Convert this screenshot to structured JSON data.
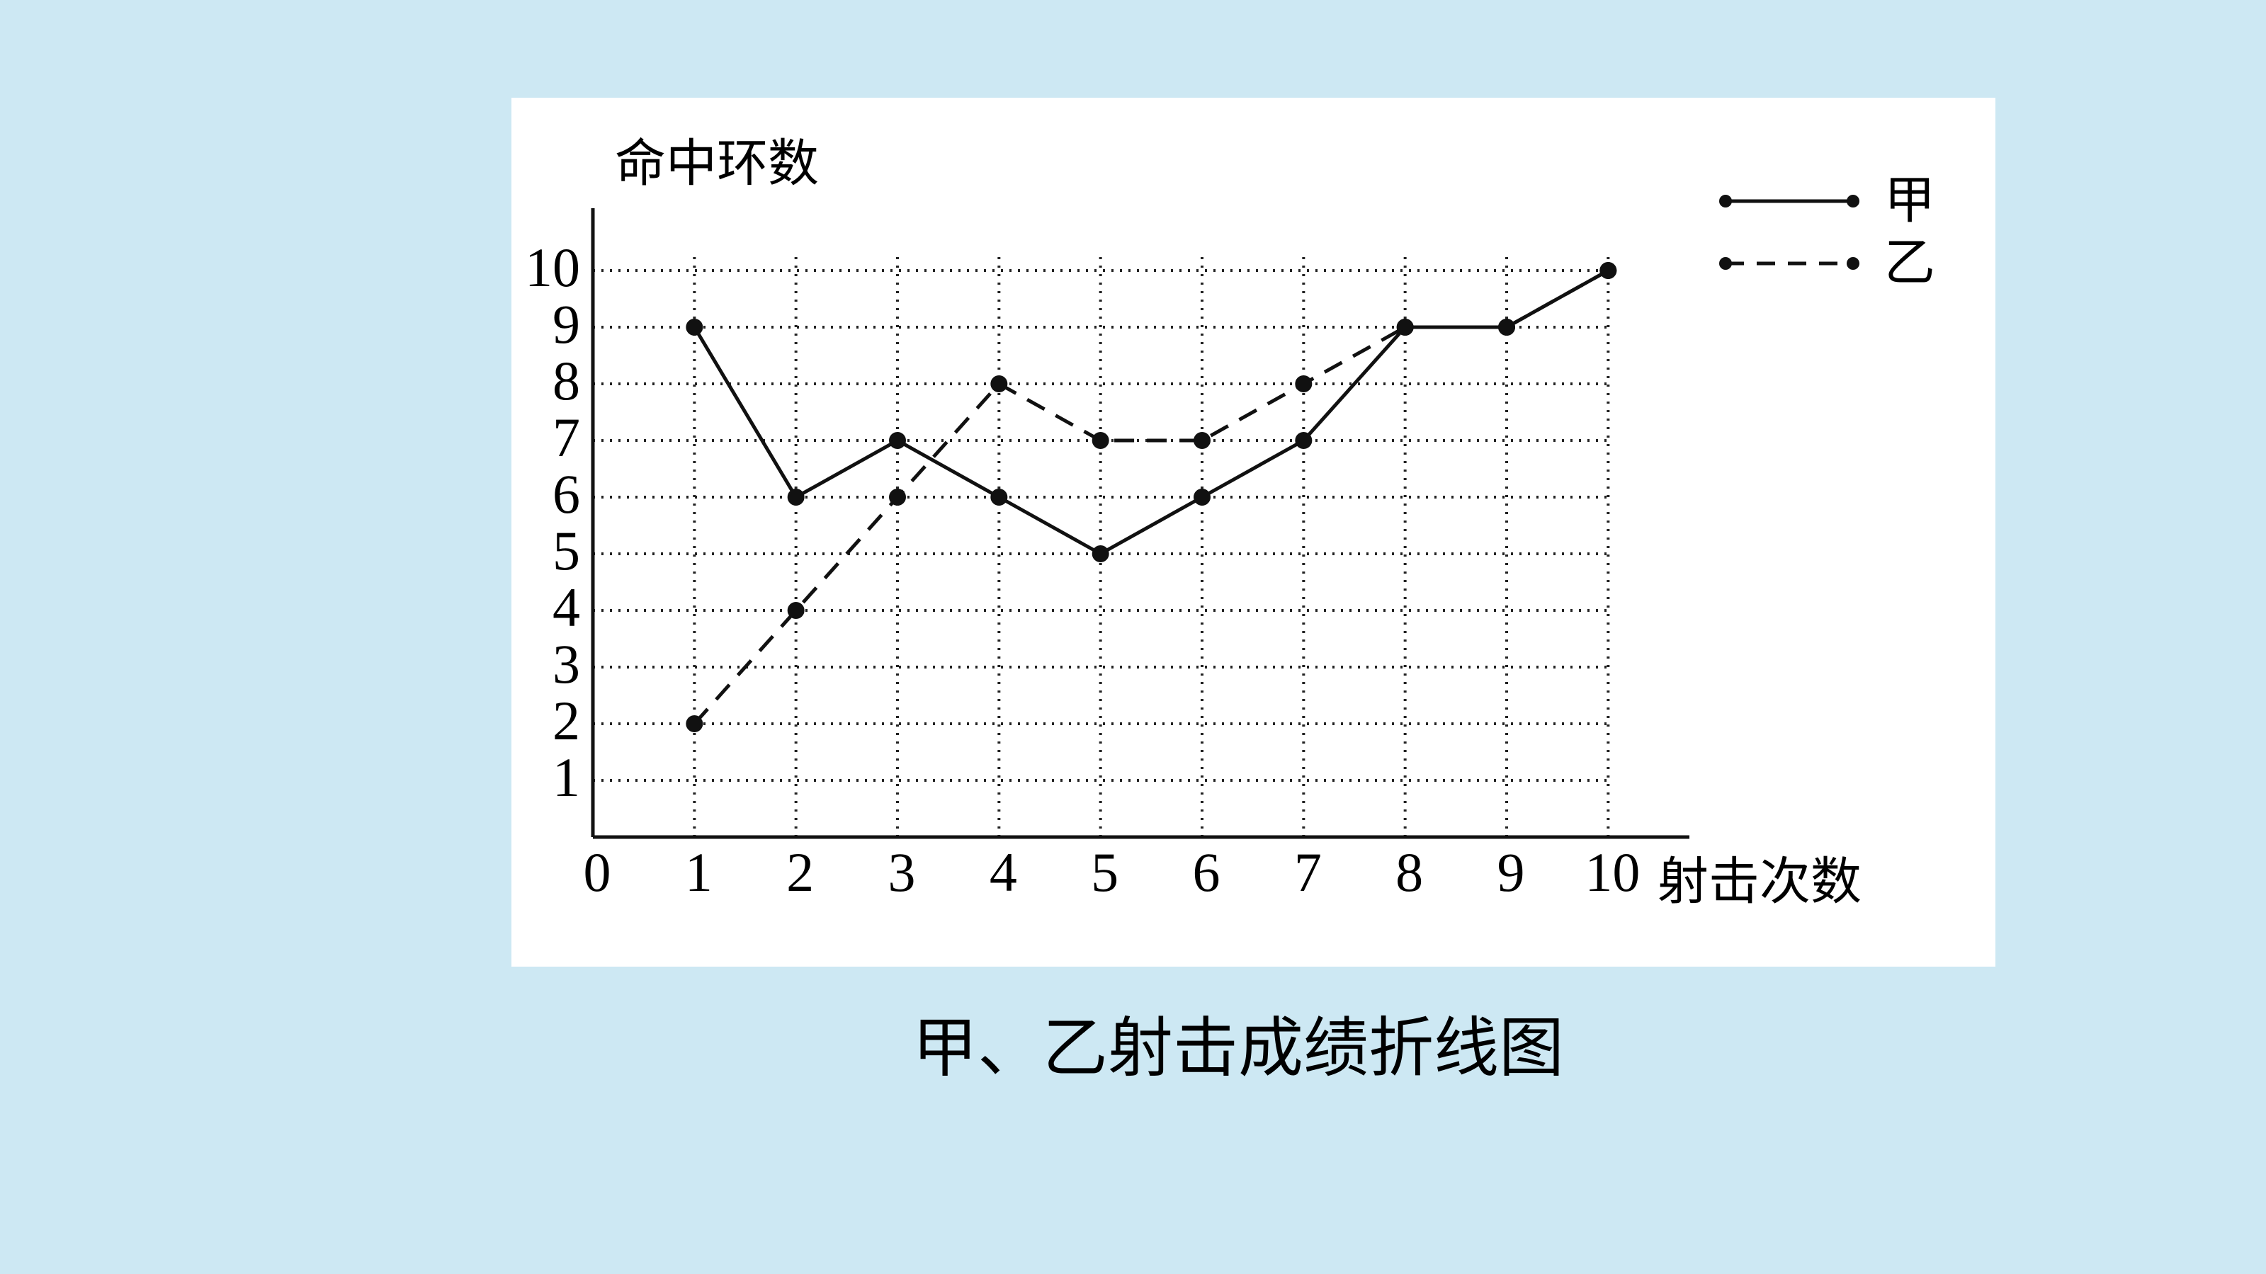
{
  "chart_data": {
    "type": "line",
    "title": "甲、乙射击成绩折线图",
    "y_label": "命中环数",
    "x_label": "射击次数",
    "x": [
      1,
      2,
      3,
      4,
      5,
      6,
      7,
      8,
      9,
      10
    ],
    "series": [
      {
        "name": "甲",
        "color": "#111111",
        "dashed": false,
        "values": [
          9,
          6,
          7,
          6,
          5,
          6,
          7,
          9,
          9,
          10
        ]
      },
      {
        "name": "乙",
        "color": "#111111",
        "dashed": true,
        "values": [
          2,
          4,
          6,
          8,
          7,
          7,
          8,
          9,
          9,
          10
        ]
      }
    ],
    "xlim": [
      0,
      10.8
    ],
    "xticks": [
      0,
      1,
      2,
      3,
      4,
      5,
      6,
      7,
      8,
      9,
      10
    ],
    "ylim": [
      0,
      11.1
    ],
    "yticks": [
      1,
      2,
      3,
      4,
      5,
      6,
      7,
      8,
      9,
      10
    ],
    "grid": true,
    "legend": "upper right"
  }
}
